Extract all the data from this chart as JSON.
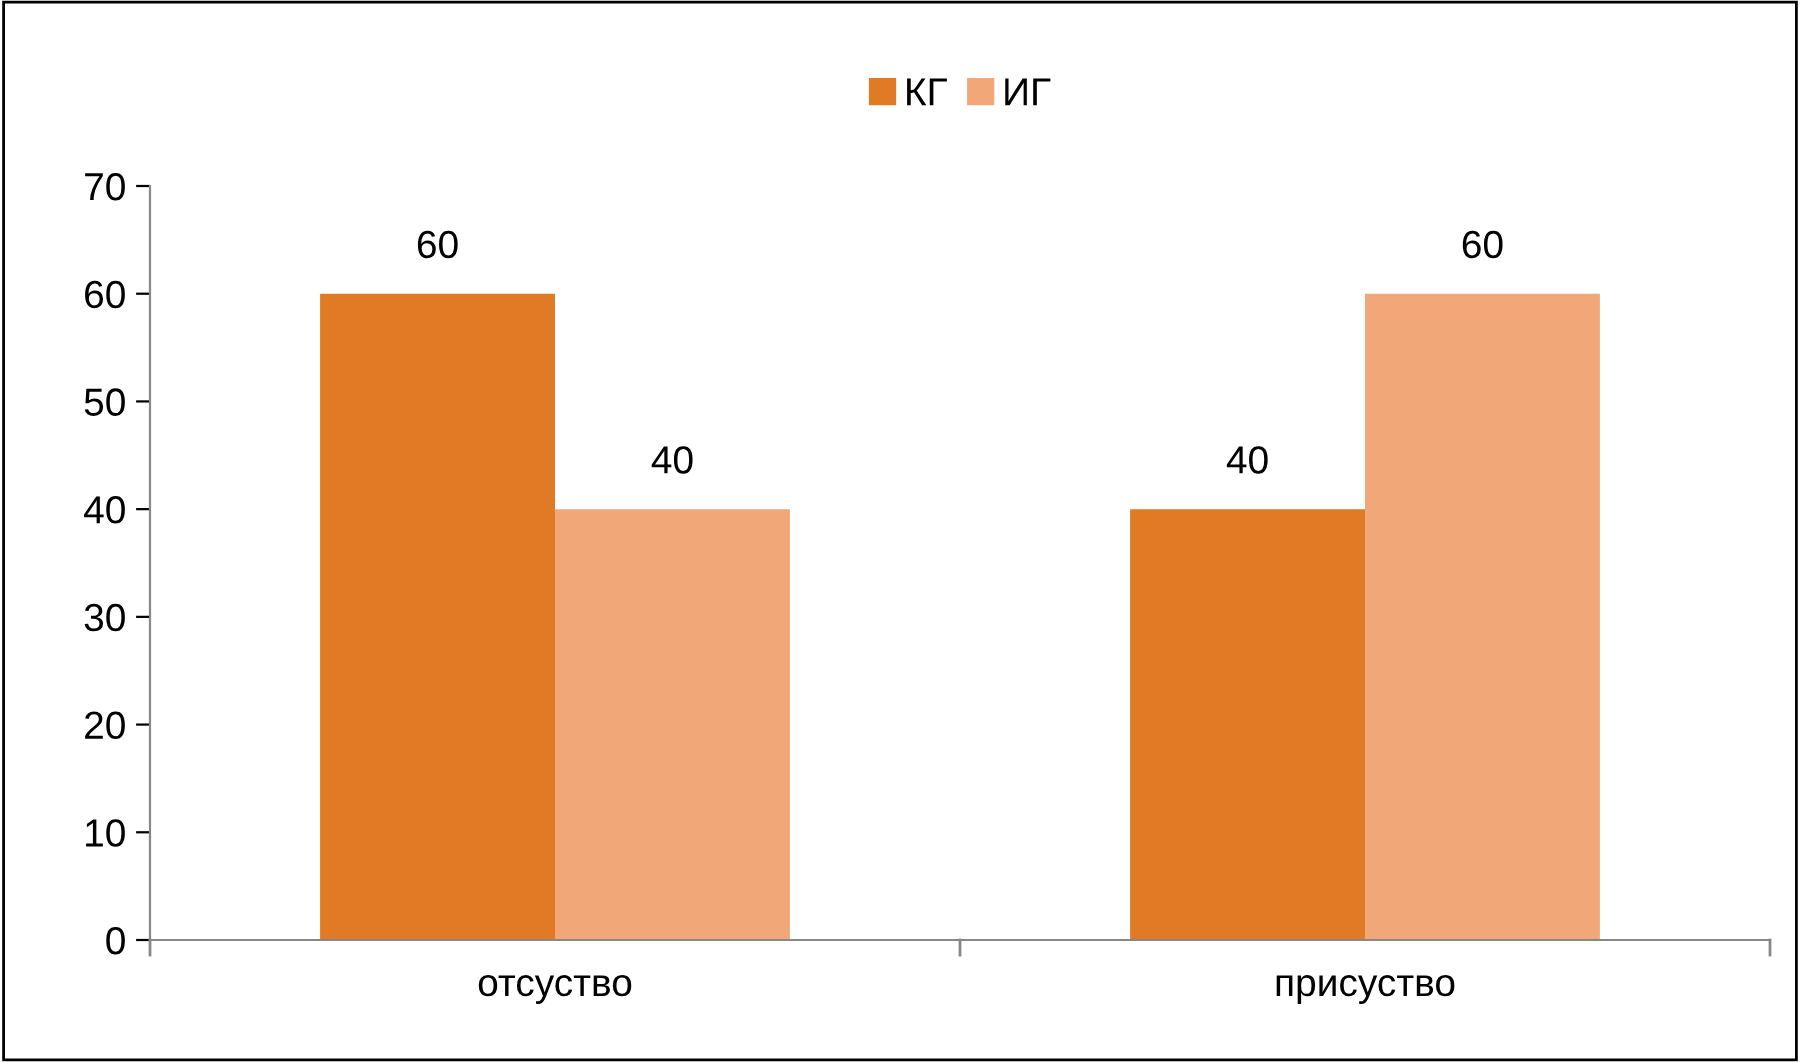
{
  "chart_data": {
    "type": "bar",
    "categories": [
      "отсуство",
      "присуство"
    ],
    "series": [
      {
        "name": "КГ",
        "color": "#e07a24",
        "values": [
          60,
          40
        ]
      },
      {
        "name": "ИГ",
        "color": "#f2a779",
        "values": [
          40,
          60
        ]
      }
    ],
    "ylim": [
      0,
      70
    ],
    "yticks": [
      0,
      10,
      20,
      30,
      40,
      50,
      60,
      70
    ],
    "data_labels": true,
    "legend": "top",
    "grid": false
  }
}
